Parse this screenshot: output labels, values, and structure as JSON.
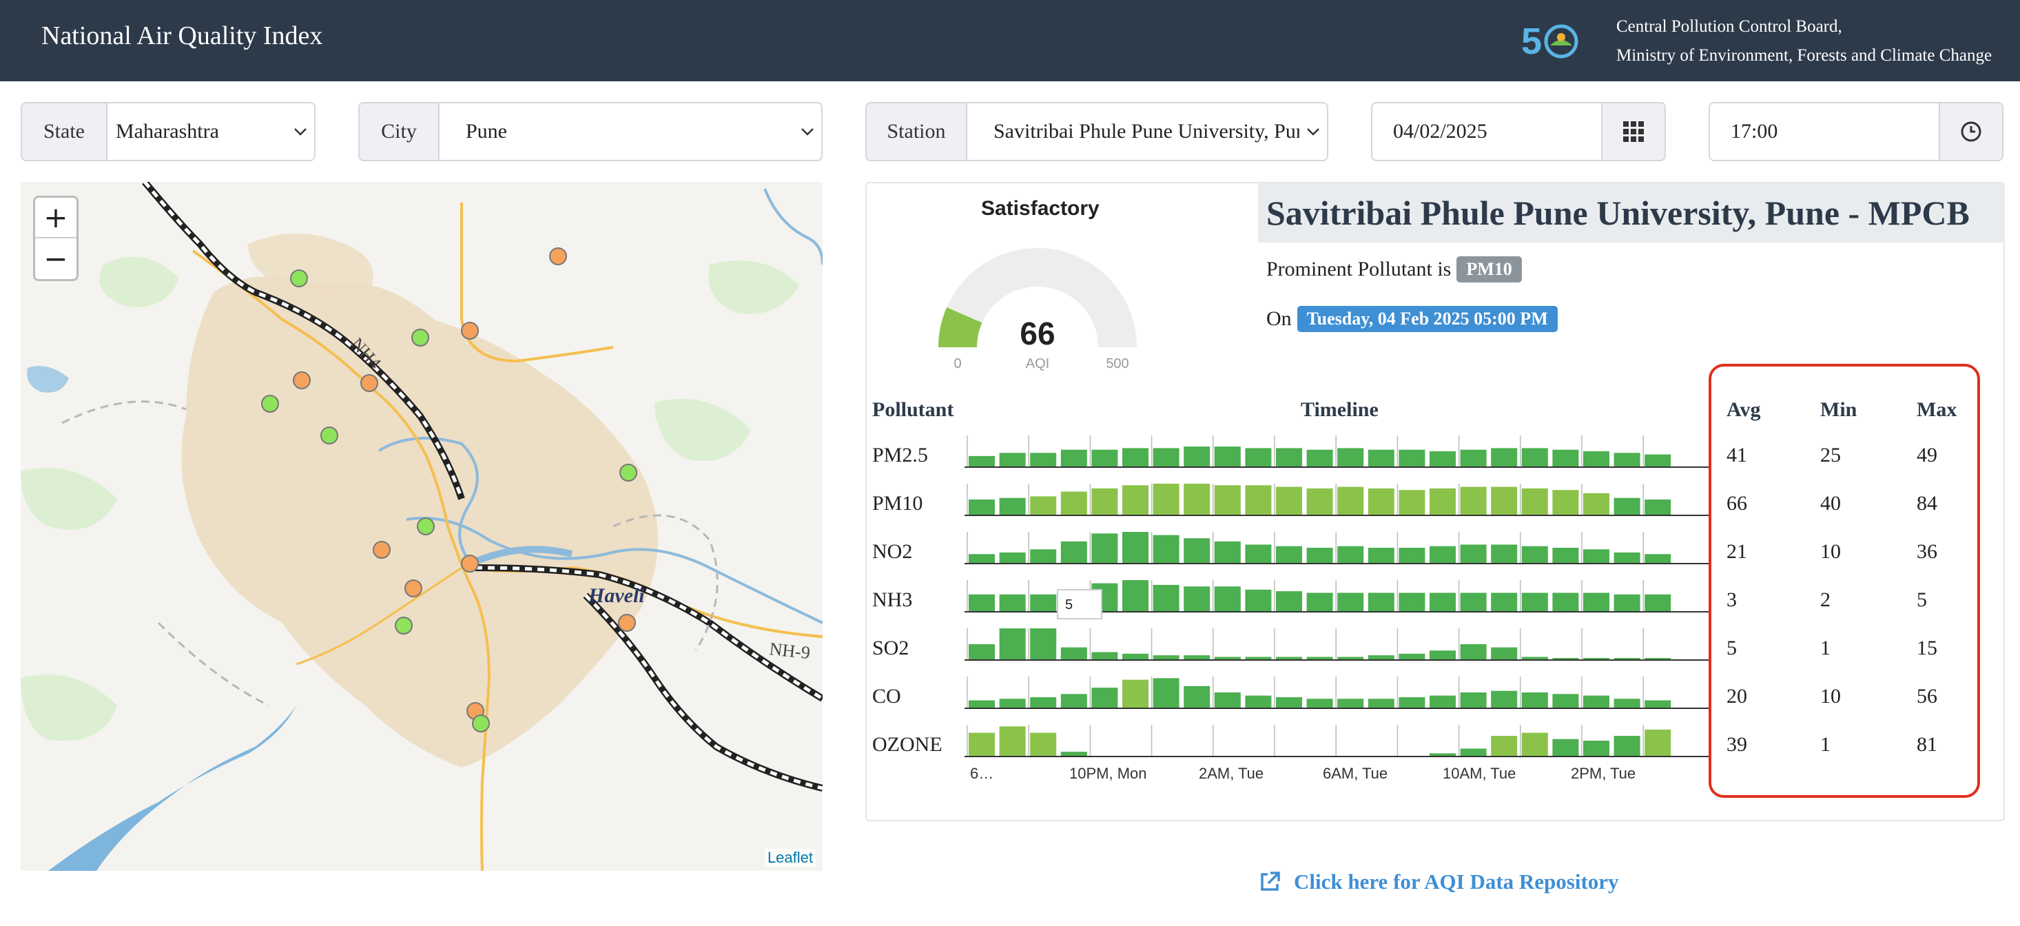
{
  "header": {
    "title": "National Air Quality Index",
    "org_line1": "Central Pollution Control Board,",
    "org_line2": "Ministry of Environment, Forests and Climate Change"
  },
  "filters": {
    "state_label": "State",
    "state_value": "Maharashtra",
    "city_label": "City",
    "city_value": "Pune",
    "station_label": "Station",
    "station_value": "Savitribai Phule Pune University, Pune",
    "date_value": "04/02/2025",
    "time_value": "17:00"
  },
  "map": {
    "zoom_in": "+",
    "zoom_out": "−",
    "labels": [
      "NH4",
      "Haveli",
      "NH-9"
    ],
    "attribution": "Leaflet",
    "markers": [
      {
        "status": "satisfactory",
        "color": "#8ee35a"
      },
      {
        "status": "moderate",
        "color": "#f5a25d"
      }
    ]
  },
  "gauge": {
    "status": "Satisfactory",
    "value": "66",
    "unit": "AQI",
    "min_label": "0",
    "max_label": "500",
    "fill_fraction": 0.132,
    "fill_color": "#8bc34a",
    "track_color": "#ededed"
  },
  "station": {
    "title": "Savitribai Phule Pune University, Pune - MPCB",
    "prominent_prefix": "Prominent Pollutant is",
    "prominent": "PM10",
    "on_prefix": "On",
    "datetime": "Tuesday, 04 Feb 2025 05:00 PM"
  },
  "table": {
    "pollutant_header": "Pollutant",
    "timeline_header": "Timeline",
    "avg_header": "Avg",
    "min_header": "Min",
    "max_header": "Max",
    "rows": [
      {
        "name": "PM2.5",
        "avg": "41",
        "min": "25",
        "max": "49"
      },
      {
        "name": "PM10",
        "avg": "66",
        "min": "40",
        "max": "84"
      },
      {
        "name": "NO2",
        "avg": "21",
        "min": "10",
        "max": "36"
      },
      {
        "name": "NH3",
        "avg": "3",
        "min": "2",
        "max": "5"
      },
      {
        "name": "SO2",
        "avg": "5",
        "min": "1",
        "max": "15"
      },
      {
        "name": "CO",
        "avg": "20",
        "min": "10",
        "max": "56"
      },
      {
        "name": "OZONE",
        "avg": "39",
        "min": "1",
        "max": "81"
      }
    ],
    "tooltip": "5",
    "axis_labels": [
      "6…",
      "10PM, Mon",
      "2AM, Tue",
      "6AM, Tue",
      "10AM, Tue",
      "2PM, Tue"
    ]
  },
  "chart_data": {
    "type": "bar",
    "colors": {
      "good": "#4caf50",
      "satisfactory": "#8bc34a"
    },
    "series": [
      {
        "name": "PM2.5",
        "values": [
          0.35,
          0.45,
          0.45,
          0.55,
          0.55,
          0.6,
          0.6,
          0.65,
          0.65,
          0.6,
          0.6,
          0.55,
          0.6,
          0.55,
          0.55,
          0.5,
          0.55,
          0.6,
          0.6,
          0.55,
          0.5,
          0.45,
          0.4
        ],
        "satisfactory": []
      },
      {
        "name": "PM10",
        "values": [
          0.5,
          0.55,
          0.6,
          0.75,
          0.85,
          0.95,
          1.0,
          1.0,
          0.95,
          0.95,
          0.9,
          0.85,
          0.9,
          0.85,
          0.8,
          0.85,
          0.9,
          0.9,
          0.85,
          0.8,
          0.7,
          0.55,
          0.5
        ],
        "satisfactory": [
          2,
          3,
          4,
          5,
          6,
          7,
          8,
          9,
          10,
          11,
          12,
          13,
          14,
          15,
          16,
          17,
          18,
          19,
          20
        ]
      },
      {
        "name": "NO2",
        "values": [
          0.3,
          0.35,
          0.45,
          0.7,
          0.95,
          1.0,
          0.9,
          0.8,
          0.7,
          0.6,
          0.55,
          0.5,
          0.55,
          0.5,
          0.5,
          0.55,
          0.6,
          0.6,
          0.55,
          0.5,
          0.45,
          0.35,
          0.3
        ],
        "satisfactory": []
      },
      {
        "name": "NH3",
        "values": [
          0.55,
          0.55,
          0.55,
          0.6,
          0.9,
          1.0,
          0.85,
          0.8,
          0.8,
          0.7,
          0.65,
          0.6,
          0.6,
          0.6,
          0.6,
          0.6,
          0.6,
          0.6,
          0.6,
          0.6,
          0.6,
          0.55,
          0.55
        ],
        "satisfactory": []
      },
      {
        "name": "SO2",
        "values": [
          0.5,
          1.0,
          1.0,
          0.4,
          0.25,
          0.2,
          0.15,
          0.15,
          0.1,
          0.1,
          0.1,
          0.1,
          0.1,
          0.15,
          0.2,
          0.3,
          0.5,
          0.4,
          0.1,
          0.05,
          0.05,
          0.05,
          0.05
        ],
        "satisfactory": []
      },
      {
        "name": "CO",
        "values": [
          0.25,
          0.3,
          0.35,
          0.45,
          0.65,
          0.9,
          0.95,
          0.7,
          0.5,
          0.4,
          0.35,
          0.3,
          0.3,
          0.3,
          0.35,
          0.4,
          0.5,
          0.55,
          0.5,
          0.45,
          0.4,
          0.3,
          0.25
        ],
        "satisfactory": [
          5
        ]
      },
      {
        "name": "OZONE",
        "values": [
          0.75,
          0.95,
          0.75,
          0.15,
          0.0,
          0.0,
          0.0,
          0.0,
          0.0,
          0.0,
          0.0,
          0.0,
          0.0,
          0.0,
          0.0,
          0.1,
          0.25,
          0.65,
          0.75,
          0.55,
          0.5,
          0.65,
          0.85
        ],
        "satisfactory": [
          0,
          1,
          2,
          17,
          18,
          22
        ]
      }
    ]
  },
  "repo_link": "Click here for AQI Data Repository"
}
